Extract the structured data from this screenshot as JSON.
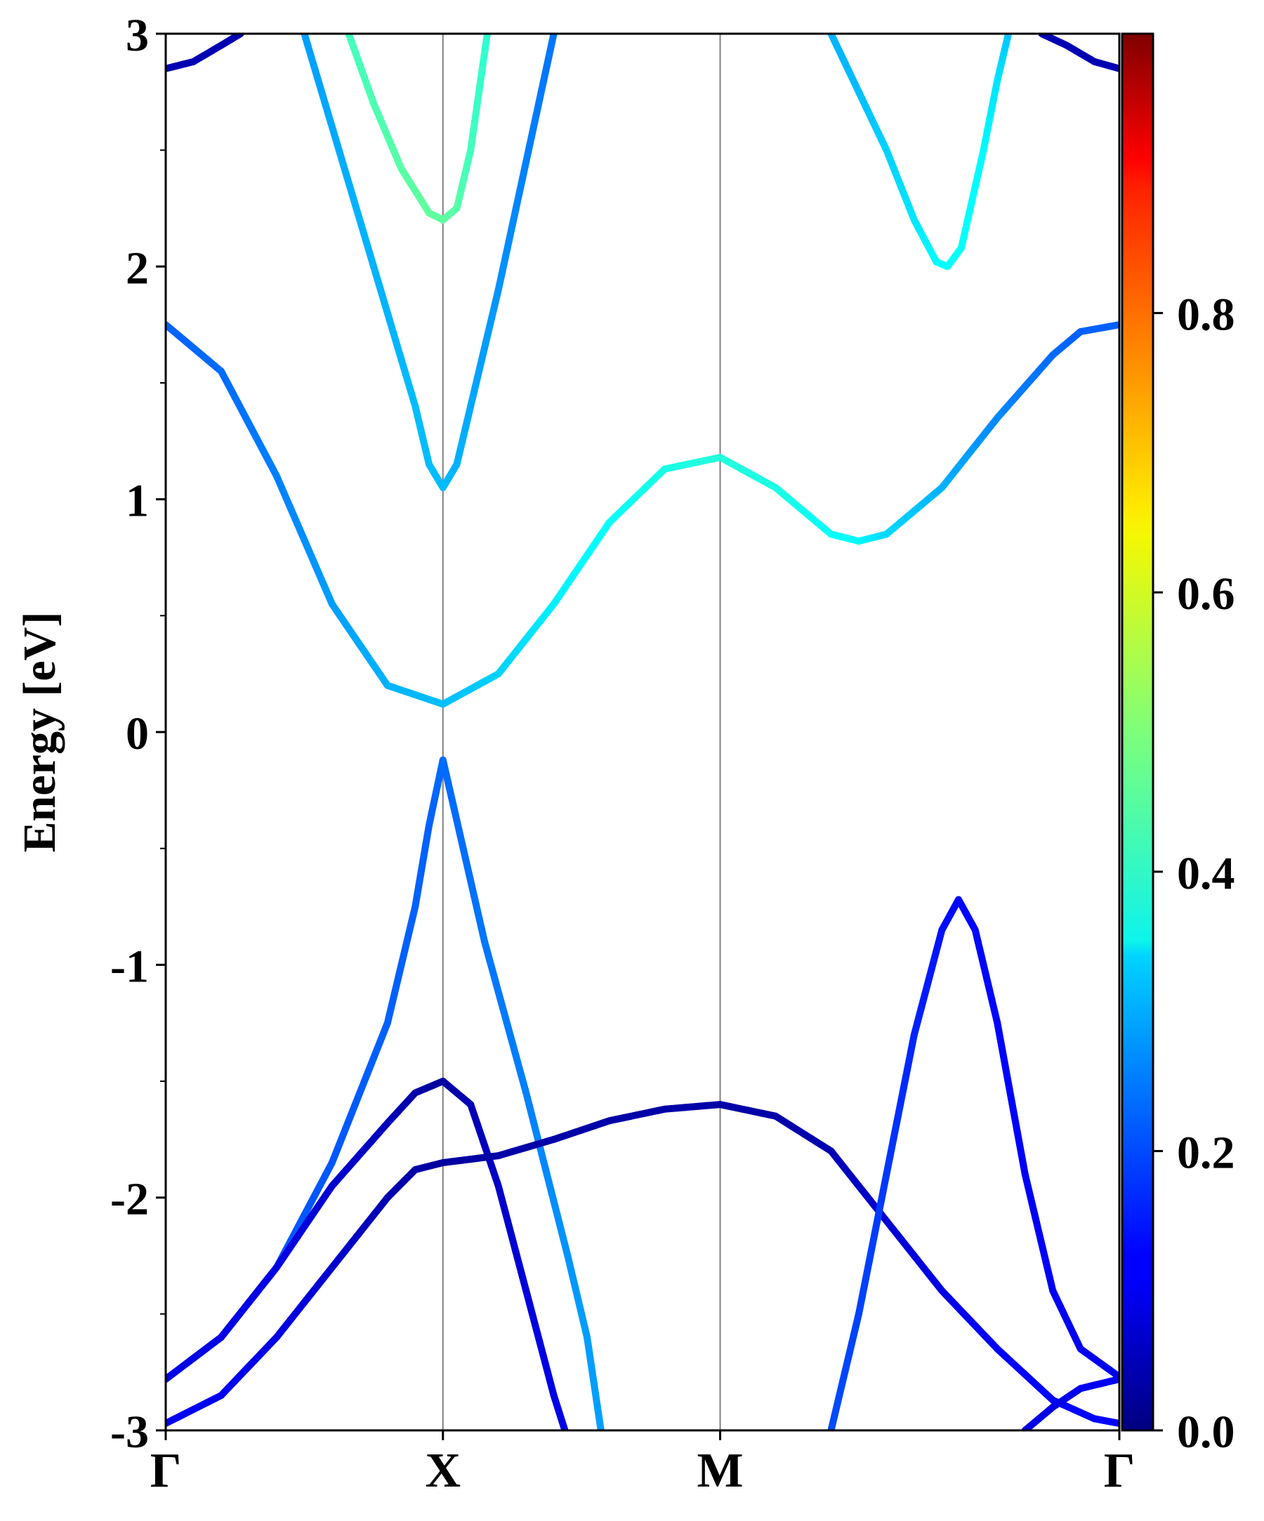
{
  "chart_data": {
    "type": "line",
    "title": "",
    "xlabel": "",
    "ylabel": "Energy [eV]",
    "ylim": [
      -3,
      3
    ],
    "y_ticks": [
      "-3",
      "-2",
      "-1",
      "0",
      "1",
      "2",
      "3"
    ],
    "k_path": [
      "Γ",
      "X",
      "M",
      "Γ"
    ],
    "k_positions": [
      0,
      1,
      2,
      3.44
    ],
    "x_range": [
      0,
      3.44
    ],
    "colorbar": {
      "colormap": "jet",
      "range": [
        0,
        1
      ],
      "ticks": [
        "0.0",
        "0.2",
        "0.4",
        "0.6",
        "0.8"
      ]
    },
    "series": [
      {
        "segments": [
          {
            "points": [
              [
                0.0,
                -2.78
              ],
              [
                0.2,
                -2.6
              ],
              [
                0.4,
                -2.3
              ],
              [
                0.6,
                -1.85
              ],
              [
                0.8,
                -1.25
              ],
              [
                0.9,
                -0.75
              ],
              [
                0.95,
                -0.4
              ],
              [
                1.0,
                -0.12
              ],
              [
                1.05,
                -0.38
              ],
              [
                1.15,
                -0.9
              ],
              [
                1.3,
                -1.55
              ],
              [
                1.45,
                -2.25
              ],
              [
                1.52,
                -2.6
              ],
              [
                1.57,
                -3.0
              ]
            ],
            "weights": [
              0.2,
              0.2,
              0.21,
              0.21,
              0.22,
              0.22,
              0.22,
              0.23,
              0.23,
              0.24,
              0.25,
              0.27,
              0.28,
              0.28
            ]
          }
        ]
      },
      {
        "segments": [
          {
            "points": [
              [
                0.0,
                -2.78
              ],
              [
                0.2,
                -2.6
              ],
              [
                0.4,
                -2.3
              ],
              [
                0.6,
                -1.95
              ],
              [
                0.8,
                -1.68
              ],
              [
                0.9,
                -1.55
              ],
              [
                1.0,
                -1.5
              ],
              [
                1.1,
                -1.6
              ],
              [
                1.2,
                -1.95
              ],
              [
                1.3,
                -2.4
              ],
              [
                1.4,
                -2.85
              ],
              [
                1.44,
                -3.0
              ]
            ],
            "weights": [
              0.1,
              0.1,
              0.1,
              0.08,
              0.06,
              0.04,
              0.03,
              0.05,
              0.07,
              0.09,
              0.1,
              0.1
            ]
          }
        ]
      },
      {
        "segments": [
          {
            "points": [
              [
                0.0,
                -2.97
              ],
              [
                0.2,
                -2.85
              ],
              [
                0.4,
                -2.6
              ],
              [
                0.6,
                -2.3
              ],
              [
                0.8,
                -2.0
              ],
              [
                0.9,
                -1.88
              ],
              [
                1.0,
                -1.85
              ],
              [
                1.2,
                -1.82
              ],
              [
                1.4,
                -1.75
              ],
              [
                1.6,
                -1.67
              ],
              [
                1.8,
                -1.62
              ],
              [
                2.0,
                -1.6
              ],
              [
                2.2,
                -1.65
              ],
              [
                2.4,
                -1.8
              ],
              [
                2.6,
                -2.1
              ],
              [
                2.8,
                -2.4
              ],
              [
                3.0,
                -2.65
              ],
              [
                3.2,
                -2.87
              ],
              [
                3.35,
                -2.95
              ],
              [
                3.44,
                -2.97
              ]
            ],
            "weights": [
              0.12,
              0.11,
              0.1,
              0.08,
              0.05,
              0.04,
              0.03,
              0.04,
              0.04,
              0.04,
              0.04,
              0.04,
              0.04,
              0.05,
              0.08,
              0.1,
              0.12,
              0.13,
              0.13,
              0.12
            ]
          }
        ]
      },
      {
        "segments": [
          {
            "points": [
              [
                3.1,
                -3.0
              ],
              [
                3.2,
                -2.9
              ],
              [
                3.3,
                -2.82
              ],
              [
                3.44,
                -2.78
              ]
            ],
            "weights": [
              0.1,
              0.1,
              0.11,
              0.12
            ]
          }
        ]
      },
      {
        "segments": [
          {
            "points": [
              [
                2.4,
                -3.0
              ],
              [
                2.5,
                -2.5
              ],
              [
                2.6,
                -1.9
              ],
              [
                2.7,
                -1.3
              ],
              [
                2.8,
                -0.85
              ],
              [
                2.86,
                -0.72
              ],
              [
                2.92,
                -0.85
              ],
              [
                3.0,
                -1.25
              ],
              [
                3.1,
                -1.9
              ],
              [
                3.2,
                -2.4
              ],
              [
                3.3,
                -2.65
              ],
              [
                3.44,
                -2.77
              ]
            ],
            "weights": [
              0.2,
              0.19,
              0.18,
              0.16,
              0.14,
              0.13,
              0.13,
              0.13,
              0.12,
              0.12,
              0.11,
              0.11
            ]
          }
        ]
      },
      {
        "segments": [
          {
            "points": [
              [
                0.0,
                1.75
              ],
              [
                0.2,
                1.55
              ],
              [
                0.4,
                1.1
              ],
              [
                0.6,
                0.55
              ],
              [
                0.8,
                0.2
              ],
              [
                1.0,
                0.12
              ],
              [
                1.2,
                0.25
              ],
              [
                1.4,
                0.55
              ],
              [
                1.6,
                0.9
              ],
              [
                1.8,
                1.13
              ],
              [
                2.0,
                1.18
              ],
              [
                2.2,
                1.05
              ],
              [
                2.4,
                0.85
              ],
              [
                2.5,
                0.82
              ],
              [
                2.6,
                0.85
              ],
              [
                2.8,
                1.05
              ],
              [
                3.0,
                1.35
              ],
              [
                3.2,
                1.62
              ],
              [
                3.3,
                1.72
              ],
              [
                3.44,
                1.75
              ]
            ],
            "weights": [
              0.22,
              0.23,
              0.25,
              0.28,
              0.3,
              0.31,
              0.33,
              0.36,
              0.38,
              0.4,
              0.41,
              0.4,
              0.38,
              0.37,
              0.34,
              0.3,
              0.26,
              0.23,
              0.22,
              0.22
            ]
          }
        ]
      },
      {
        "segments": [
          {
            "points": [
              [
                0.5,
                3.0
              ],
              [
                0.6,
                2.6
              ],
              [
                0.7,
                2.2
              ],
              [
                0.8,
                1.8
              ],
              [
                0.9,
                1.4
              ],
              [
                0.95,
                1.15
              ],
              [
                1.0,
                1.05
              ],
              [
                1.05,
                1.15
              ],
              [
                1.1,
                1.4
              ],
              [
                1.2,
                1.9
              ],
              [
                1.3,
                2.45
              ],
              [
                1.4,
                3.0
              ]
            ],
            "weights": [
              0.28,
              0.29,
              0.3,
              0.3,
              0.31,
              0.31,
              0.31,
              0.3,
              0.29,
              0.27,
              0.25,
              0.24
            ]
          }
        ]
      },
      {
        "segments": [
          {
            "points": [
              [
                0.66,
                3.0
              ],
              [
                0.75,
                2.7
              ],
              [
                0.85,
                2.42
              ],
              [
                0.95,
                2.23
              ],
              [
                1.0,
                2.2
              ],
              [
                1.05,
                2.25
              ],
              [
                1.1,
                2.5
              ],
              [
                1.16,
                3.0
              ]
            ],
            "weights": [
              0.44,
              0.45,
              0.46,
              0.47,
              0.47,
              0.46,
              0.44,
              0.42
            ]
          }
        ]
      },
      {
        "segments": [
          {
            "points": [
              [
                2.4,
                3.0
              ],
              [
                2.5,
                2.75
              ],
              [
                2.6,
                2.5
              ],
              [
                2.7,
                2.2
              ],
              [
                2.78,
                2.02
              ],
              [
                2.82,
                2.0
              ],
              [
                2.87,
                2.08
              ],
              [
                2.95,
                2.5
              ],
              [
                3.0,
                2.8
              ],
              [
                3.04,
                3.0
              ]
            ],
            "weights": [
              0.3,
              0.31,
              0.33,
              0.35,
              0.37,
              0.38,
              0.38,
              0.37,
              0.35,
              0.32
            ]
          }
        ]
      },
      {
        "segments": [
          {
            "points": [
              [
                0.0,
                2.85
              ],
              [
                0.1,
                2.88
              ],
              [
                0.2,
                2.95
              ],
              [
                0.27,
                3.0
              ]
            ],
            "weights": [
              0.05,
              0.05,
              0.05,
              0.05
            ]
          },
          {
            "points": [
              [
                3.16,
                3.0
              ],
              [
                3.25,
                2.95
              ],
              [
                3.35,
                2.88
              ],
              [
                3.44,
                2.85
              ]
            ],
            "weights": [
              0.05,
              0.05,
              0.05,
              0.05
            ]
          }
        ]
      }
    ]
  }
}
